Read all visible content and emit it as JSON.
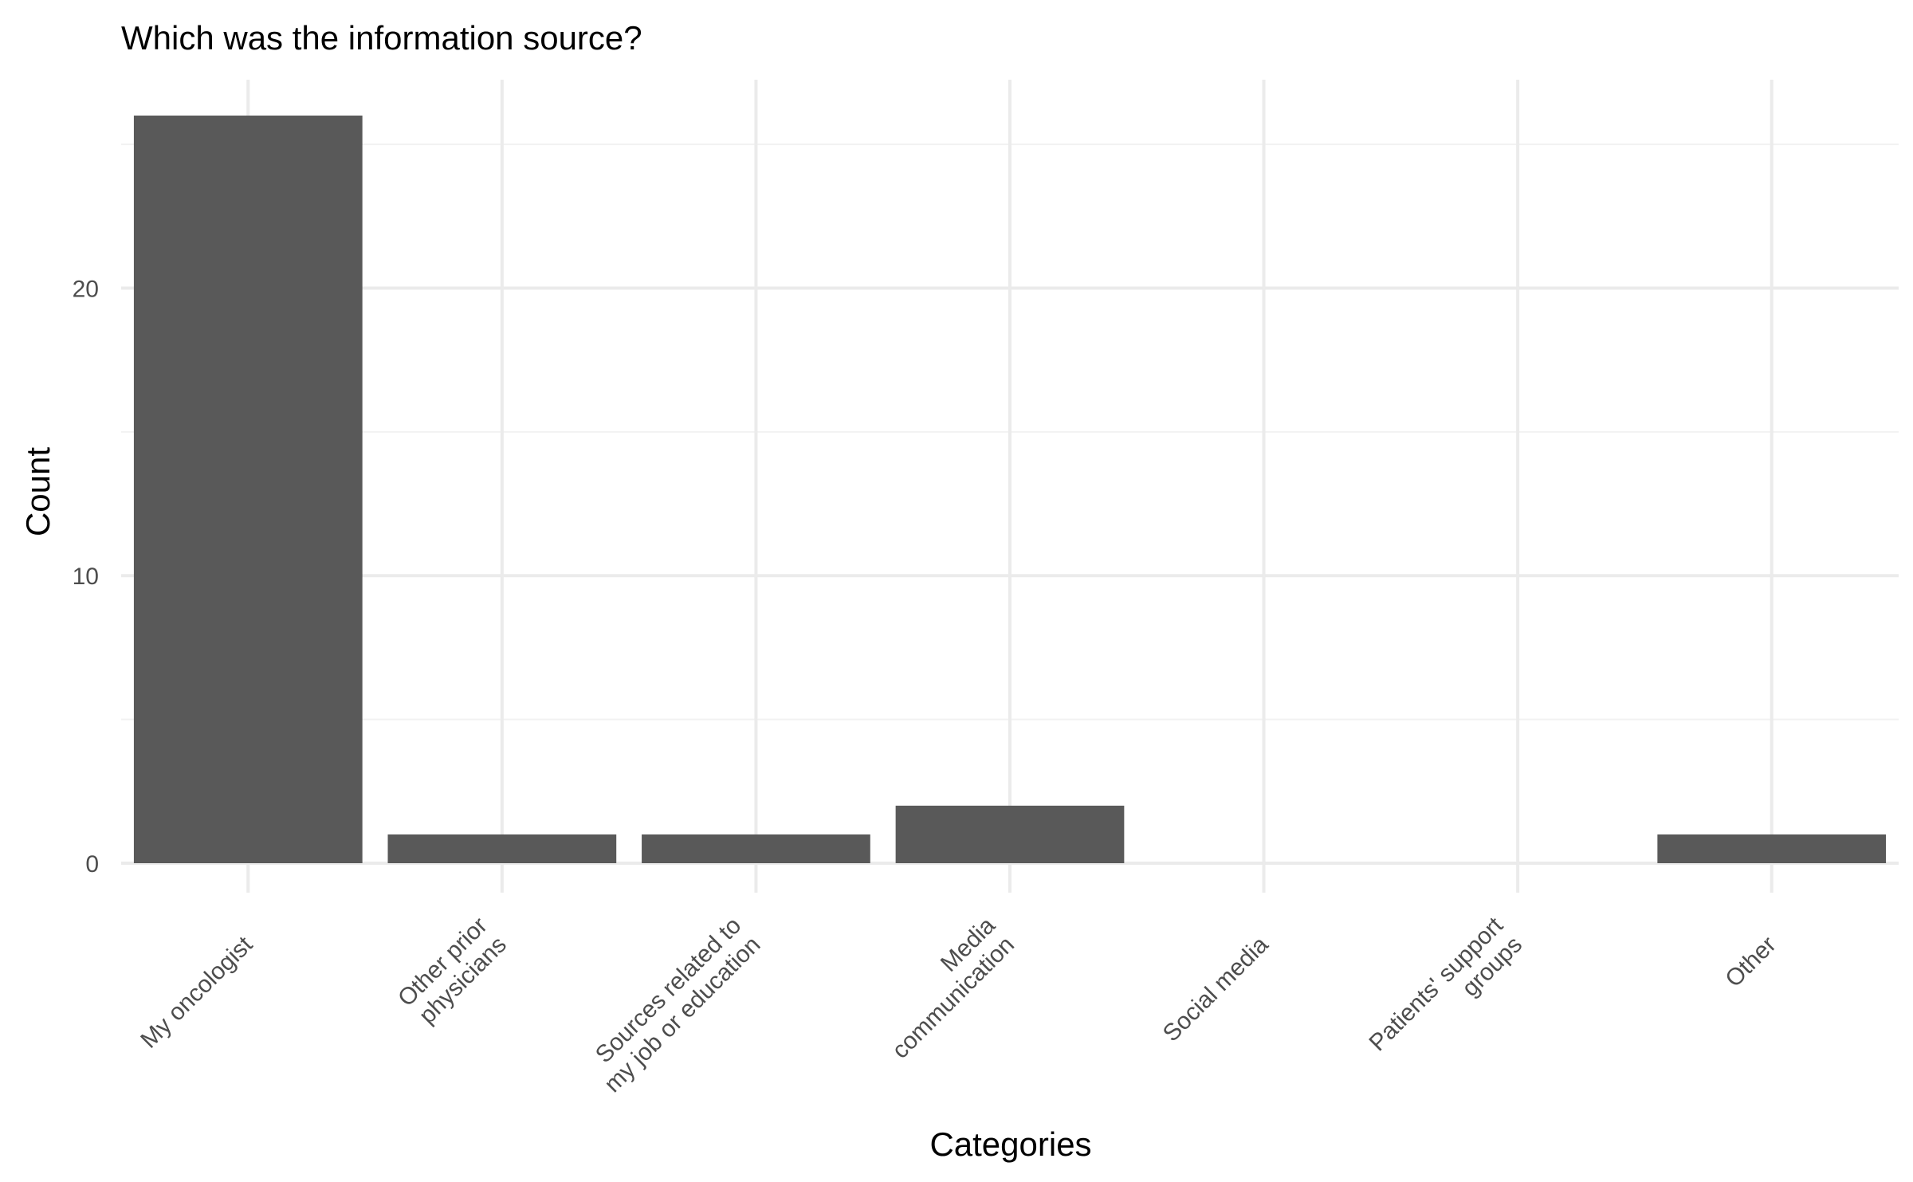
{
  "chart_data": {
    "type": "bar",
    "title": "Which was the information source?",
    "xlabel": "Categories",
    "ylabel": "Count",
    "categories": [
      [
        "My oncologist"
      ],
      [
        "Other prior",
        "physicians"
      ],
      [
        "Sources related to",
        "my job or education"
      ],
      [
        "Media",
        "communication"
      ],
      [
        "Social media"
      ],
      [
        "Patients' support",
        "groups"
      ],
      [
        "Other"
      ]
    ],
    "values": [
      26,
      1,
      1,
      2,
      0,
      0,
      1
    ],
    "ylim": [
      0,
      27.3
    ],
    "yticks": [
      0,
      10,
      20
    ],
    "yticks_minor": [
      5,
      15,
      25
    ],
    "grid": true,
    "bar_color": "#595959"
  }
}
